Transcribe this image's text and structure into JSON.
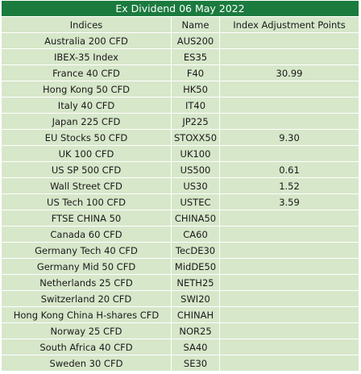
{
  "title": "Ex Dividend 06 May 2022",
  "columns": [
    "Indices",
    "Name",
    "Index Adjustment Points"
  ],
  "rows": [
    {
      "index": "Australia 200 CFD",
      "name": "AUS200",
      "points": ""
    },
    {
      "index": "IBEX-35 Index",
      "name": "ES35",
      "points": ""
    },
    {
      "index": "France 40 CFD",
      "name": "F40",
      "points": "30.99"
    },
    {
      "index": "Hong Kong 50 CFD",
      "name": "HK50",
      "points": ""
    },
    {
      "index": "Italy 40 CFD",
      "name": "IT40",
      "points": ""
    },
    {
      "index": "Japan 225 CFD",
      "name": "JP225",
      "points": ""
    },
    {
      "index": "EU Stocks 50 CFD",
      "name": "STOXX50",
      "points": "9.30"
    },
    {
      "index": "UK 100 CFD",
      "name": "UK100",
      "points": ""
    },
    {
      "index": "US SP 500 CFD",
      "name": "US500",
      "points": "0.61"
    },
    {
      "index": "Wall Street CFD",
      "name": "US30",
      "points": "1.52"
    },
    {
      "index": "US Tech 100 CFD",
      "name": "USTEC",
      "points": "3.59"
    },
    {
      "index": "FTSE CHINA 50",
      "name": "CHINA50",
      "points": ""
    },
    {
      "index": "Canada 60 CFD",
      "name": "CA60",
      "points": ""
    },
    {
      "index": "Germany Tech 40 CFD",
      "name": "TecDE30",
      "points": ""
    },
    {
      "index": "Germany Mid 50 CFD",
      "name": "MidDE50",
      "points": ""
    },
    {
      "index": "Netherlands 25 CFD",
      "name": "NETH25",
      "points": ""
    },
    {
      "index": "Switzerland 20 CFD",
      "name": "SWI20",
      "points": ""
    },
    {
      "index": "Hong Kong China H-shares CFD",
      "name": "CHINAH",
      "points": ""
    },
    {
      "index": "Norway 25 CFD",
      "name": "NOR25",
      "points": ""
    },
    {
      "index": "South Africa 40 CFD",
      "name": "SA40",
      "points": ""
    },
    {
      "index": "Sweden 30 CFD",
      "name": "SE30",
      "points": ""
    }
  ],
  "colors": {
    "title_bg": "#1b7a3e",
    "title_text": "#ffffff",
    "cell_bg": "#d7e7ca",
    "grid": "#ffffff"
  }
}
